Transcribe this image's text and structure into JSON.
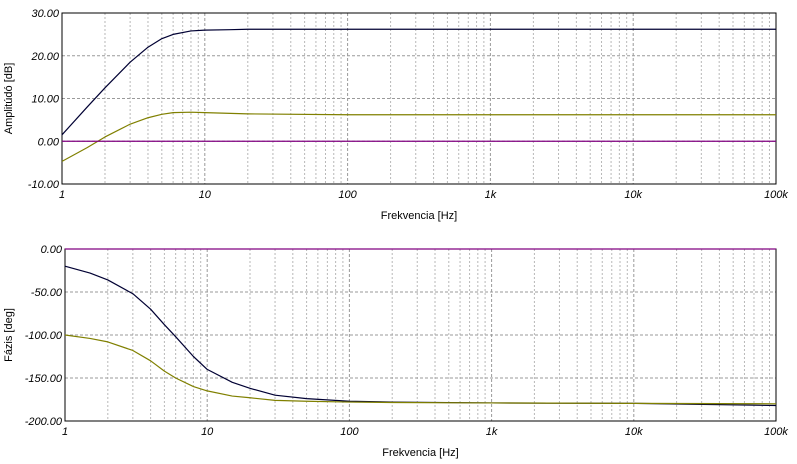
{
  "chart_data": [
    {
      "type": "line",
      "title": "",
      "xlabel": "Frekvencia [Hz]",
      "ylabel": "Amplitúdó [dB]",
      "x_scale": "log",
      "xlim": [
        1,
        100000
      ],
      "ylim": [
        -10,
        30
      ],
      "grid": true,
      "x_tick_values": [
        1,
        10,
        100,
        1000,
        10000,
        100000
      ],
      "x_tick_labels": [
        "1",
        "10",
        "100",
        "1k",
        "10k",
        "100k"
      ],
      "y_tick_values": [
        -10,
        0,
        10,
        20,
        30
      ],
      "y_tick_labels": [
        "-10.00",
        "0.00",
        "10.00",
        "20.00",
        "30.00"
      ],
      "series": [
        {
          "color": "#000033",
          "x": [
            1,
            1.5,
            2,
            3,
            4,
            5,
            6,
            8,
            10,
            15,
            20,
            50,
            100,
            1000,
            10000,
            100000
          ],
          "y": [
            1.5,
            8.0,
            12.5,
            18.5,
            22.0,
            24.0,
            25.0,
            25.8,
            26.0,
            26.1,
            26.2,
            26.2,
            26.2,
            26.2,
            26.2,
            26.2
          ]
        },
        {
          "color": "#808000",
          "x": [
            1,
            1.5,
            2,
            3,
            4,
            5,
            6,
            8,
            10,
            20,
            100,
            1000,
            10000,
            100000
          ],
          "y": [
            -4.7,
            -1.5,
            1.0,
            4.0,
            5.5,
            6.3,
            6.7,
            6.8,
            6.7,
            6.4,
            6.2,
            6.2,
            6.2,
            6.2
          ]
        },
        {
          "color": "#800080",
          "x": [
            1,
            100000
          ],
          "y": [
            0,
            0
          ]
        }
      ]
    },
    {
      "type": "line",
      "title": "",
      "xlabel": "Frekvencia [Hz]",
      "ylabel": "Fázis [deg]",
      "x_scale": "log",
      "xlim": [
        1,
        100000
      ],
      "ylim": [
        -200,
        0
      ],
      "grid": true,
      "x_tick_values": [
        1,
        10,
        100,
        1000,
        10000,
        100000
      ],
      "x_tick_labels": [
        "1",
        "10",
        "100",
        "1k",
        "10k",
        "100k"
      ],
      "y_tick_values": [
        -200,
        -150,
        -100,
        -50,
        0
      ],
      "y_tick_labels": [
        "-200.00",
        "-150.00",
        "-100.00",
        "-50.00",
        "0.00"
      ],
      "series": [
        {
          "color": "#000033",
          "x": [
            1,
            1.5,
            2,
            3,
            4,
            5,
            6,
            8,
            10,
            15,
            20,
            30,
            50,
            100,
            200,
            1000,
            10000,
            40000,
            100000
          ],
          "y": [
            -20,
            -28,
            -36,
            -52,
            -70,
            -88,
            -102,
            -125,
            -140,
            -155,
            -162,
            -170,
            -174,
            -177,
            -178,
            -179,
            -179.5,
            -181,
            -182
          ]
        },
        {
          "color": "#808000",
          "x": [
            1,
            1.5,
            2,
            3,
            4,
            5,
            6,
            8,
            10,
            15,
            20,
            30,
            50,
            100,
            200,
            1000,
            10000,
            100000
          ],
          "y": [
            -100,
            -104,
            -108,
            -118,
            -130,
            -142,
            -150,
            -160,
            -165,
            -171,
            -173,
            -176,
            -177,
            -178,
            -178.5,
            -179,
            -179.5,
            -180
          ]
        },
        {
          "color": "#800080",
          "x": [
            1,
            100000
          ],
          "y": [
            0,
            0
          ]
        }
      ]
    }
  ]
}
